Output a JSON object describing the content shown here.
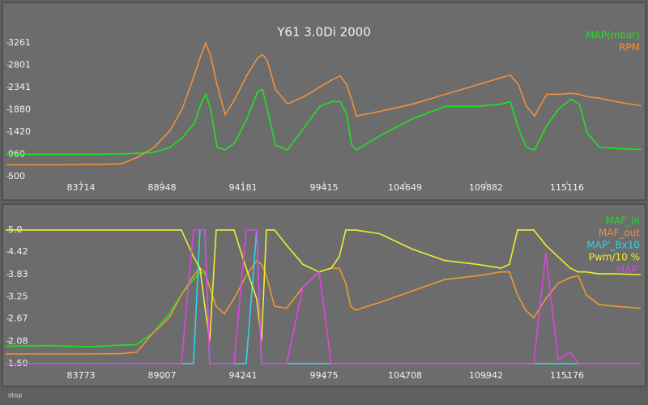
{
  "chart_data": [
    {
      "type": "line",
      "title": "Y61 3.0Di 2000",
      "x": [
        78899,
        81620,
        84237,
        86331,
        87378,
        88425,
        89471,
        90257,
        91042,
        91460,
        91774,
        92088,
        92507,
        93031,
        93659,
        94444,
        95124,
        95438,
        95752,
        96276,
        97061,
        98108,
        99154,
        99939,
        100463,
        100882,
        101196,
        101510,
        103080,
        105173,
        107267,
        109361,
        110931,
        111454,
        111978,
        112501,
        113024,
        113810,
        114595,
        115380,
        115903,
        116427,
        117212,
        118258,
        119933
      ],
      "series": [
        {
          "name": "MAP(mbar)",
          "color": "#1fe31f",
          "values": [
            960,
            960,
            960,
            965,
            980,
            1000,
            1100,
            1300,
            1600,
            2000,
            2200,
            1900,
            1100,
            1050,
            1200,
            1700,
            2250,
            2300,
            1900,
            1150,
            1050,
            1500,
            1950,
            2050,
            2050,
            1800,
            1150,
            1050,
            1350,
            1700,
            1950,
            1950,
            2000,
            2050,
            1500,
            1100,
            1050,
            1550,
            1900,
            2100,
            2000,
            1400,
            1100,
            1080,
            1060
          ]
        },
        {
          "name": "RPM",
          "color": "#f0913c",
          "values": [
            740,
            740,
            745,
            760,
            900,
            1100,
            1450,
            1900,
            2600,
            3000,
            3261,
            3000,
            2400,
            1780,
            2100,
            2600,
            2950,
            3020,
            2900,
            2300,
            2000,
            2150,
            2350,
            2500,
            2580,
            2400,
            2100,
            1750,
            1850,
            2000,
            2200,
            2400,
            2550,
            2600,
            2400,
            1950,
            1750,
            2200,
            2200,
            2220,
            2200,
            2150,
            2120,
            2050,
            1960
          ]
        }
      ],
      "xlim": [
        78899,
        119933
      ],
      "xticks": [
        83714,
        88948,
        94181,
        99415,
        104649,
        109882,
        115116
      ],
      "ylim": [
        430,
        3950
      ],
      "yticks": [
        500,
        960,
        1420,
        1880,
        2341,
        2801,
        3261
      ]
    },
    {
      "type": "line",
      "x": [
        78899,
        81620,
        84237,
        86331,
        87378,
        88425,
        89471,
        90257,
        91042,
        91460,
        91774,
        92088,
        92507,
        93031,
        93659,
        94444,
        95124,
        95438,
        95752,
        96276,
        97061,
        98108,
        99154,
        99939,
        100463,
        100882,
        101196,
        101510,
        103080,
        105173,
        107267,
        109361,
        110931,
        111454,
        111978,
        112501,
        113024,
        113810,
        114595,
        115380,
        115903,
        116427,
        117212,
        118258,
        119933
      ],
      "series": [
        {
          "name": "MAF_in",
          "color": "#1fe31f",
          "values": [
            1.95,
            1.97,
            1.94,
            1.98,
            2.0,
            2.3,
            2.8,
            3.3,
            3.7,
            3.9,
            3.85,
            3.5,
            3.0,
            2.8,
            3.2,
            3.8,
            4.2,
            4.1,
            3.8,
            3.0,
            2.95,
            3.5,
            3.9,
            4.0,
            4.0,
            3.6,
            3.0,
            2.9,
            3.1,
            3.4,
            3.7,
            3.8,
            3.9,
            3.9,
            3.3,
            2.9,
            2.7,
            3.2,
            3.6,
            3.75,
            3.8,
            3.3,
            3.05,
            3.0,
            2.95
          ]
        },
        {
          "name": "MAF_out",
          "color": "#f0913c",
          "values": [
            1.75,
            1.75,
            1.75,
            1.76,
            1.8,
            2.3,
            2.7,
            3.3,
            3.8,
            4.0,
            3.9,
            3.5,
            3.0,
            2.8,
            3.2,
            3.8,
            4.2,
            4.1,
            3.8,
            3.0,
            2.95,
            3.5,
            3.9,
            4.0,
            4.0,
            3.6,
            3.0,
            2.9,
            3.1,
            3.4,
            3.7,
            3.8,
            3.9,
            3.9,
            3.3,
            2.9,
            2.7,
            3.2,
            3.6,
            3.75,
            3.8,
            3.3,
            3.05,
            3.0,
            2.95
          ]
        },
        {
          "name": "MAP'_Bx10",
          "color": "#2ad6f0",
          "values": [
            1.5,
            1.5,
            1.5,
            1.5,
            1.5,
            1.5,
            1.5,
            1.5,
            1.5,
            5.0,
            5.0,
            1.5,
            1.5,
            1.5,
            1.5,
            1.5,
            5.0,
            1.5,
            1.5,
            1.5,
            1.5,
            1.5,
            1.5,
            1.5,
            1.5,
            1.5,
            1.5,
            1.5,
            1.5,
            1.5,
            1.5,
            1.5,
            1.5,
            1.5,
            1.5,
            1.5,
            1.5,
            1.5,
            1.5,
            1.5,
            1.5,
            1.5,
            1.5,
            1.5,
            1.5
          ]
        },
        {
          "name": "Pwm/10 %",
          "color": "#eeee2e",
          "values": [
            5.0,
            5.0,
            5.0,
            5.0,
            5.0,
            5.0,
            5.0,
            5.0,
            4.3,
            4.0,
            3.0,
            2.1,
            5.0,
            5.0,
            5.0,
            4.0,
            3.2,
            2.1,
            5.0,
            5.0,
            4.6,
            4.1,
            3.9,
            4.0,
            4.3,
            5.0,
            5.0,
            5.0,
            4.9,
            4.5,
            4.2,
            4.1,
            4.0,
            4.1,
            5.0,
            5.0,
            5.0,
            4.6,
            4.3,
            4.0,
            3.9,
            3.9,
            3.85,
            3.85,
            3.83
          ]
        },
        {
          "name": "MAP'",
          "color": "#e043e0",
          "values": [
            1.5,
            1.5,
            1.5,
            1.5,
            1.5,
            1.5,
            1.5,
            1.5,
            5.0,
            5.0,
            5.0,
            1.5,
            1.5,
            1.5,
            1.5,
            5.0,
            5.0,
            1.5,
            1.5,
            1.5,
            1.5,
            3.5,
            3.9,
            1.5,
            1.5,
            1.5,
            1.5,
            1.5,
            1.5,
            1.5,
            1.5,
            1.5,
            1.5,
            1.5,
            1.5,
            1.5,
            1.5,
            4.4,
            1.6,
            1.8,
            1.5,
            1.5,
            1.5,
            1.5,
            1.5
          ]
        }
      ],
      "xlim": [
        78958,
        119992
      ],
      "xticks": [
        83773,
        89007,
        94241,
        99475,
        104708,
        109942,
        115176
      ],
      "ylim": [
        1.22,
        5.55
      ],
      "yticks": [
        {
          "value": 1.5,
          "label": "1.50"
        },
        2.08,
        2.67,
        3.25,
        3.83,
        4.42,
        {
          "value": 5,
          "label": "5.0"
        }
      ]
    }
  ],
  "footer": {
    "button": "stop"
  }
}
